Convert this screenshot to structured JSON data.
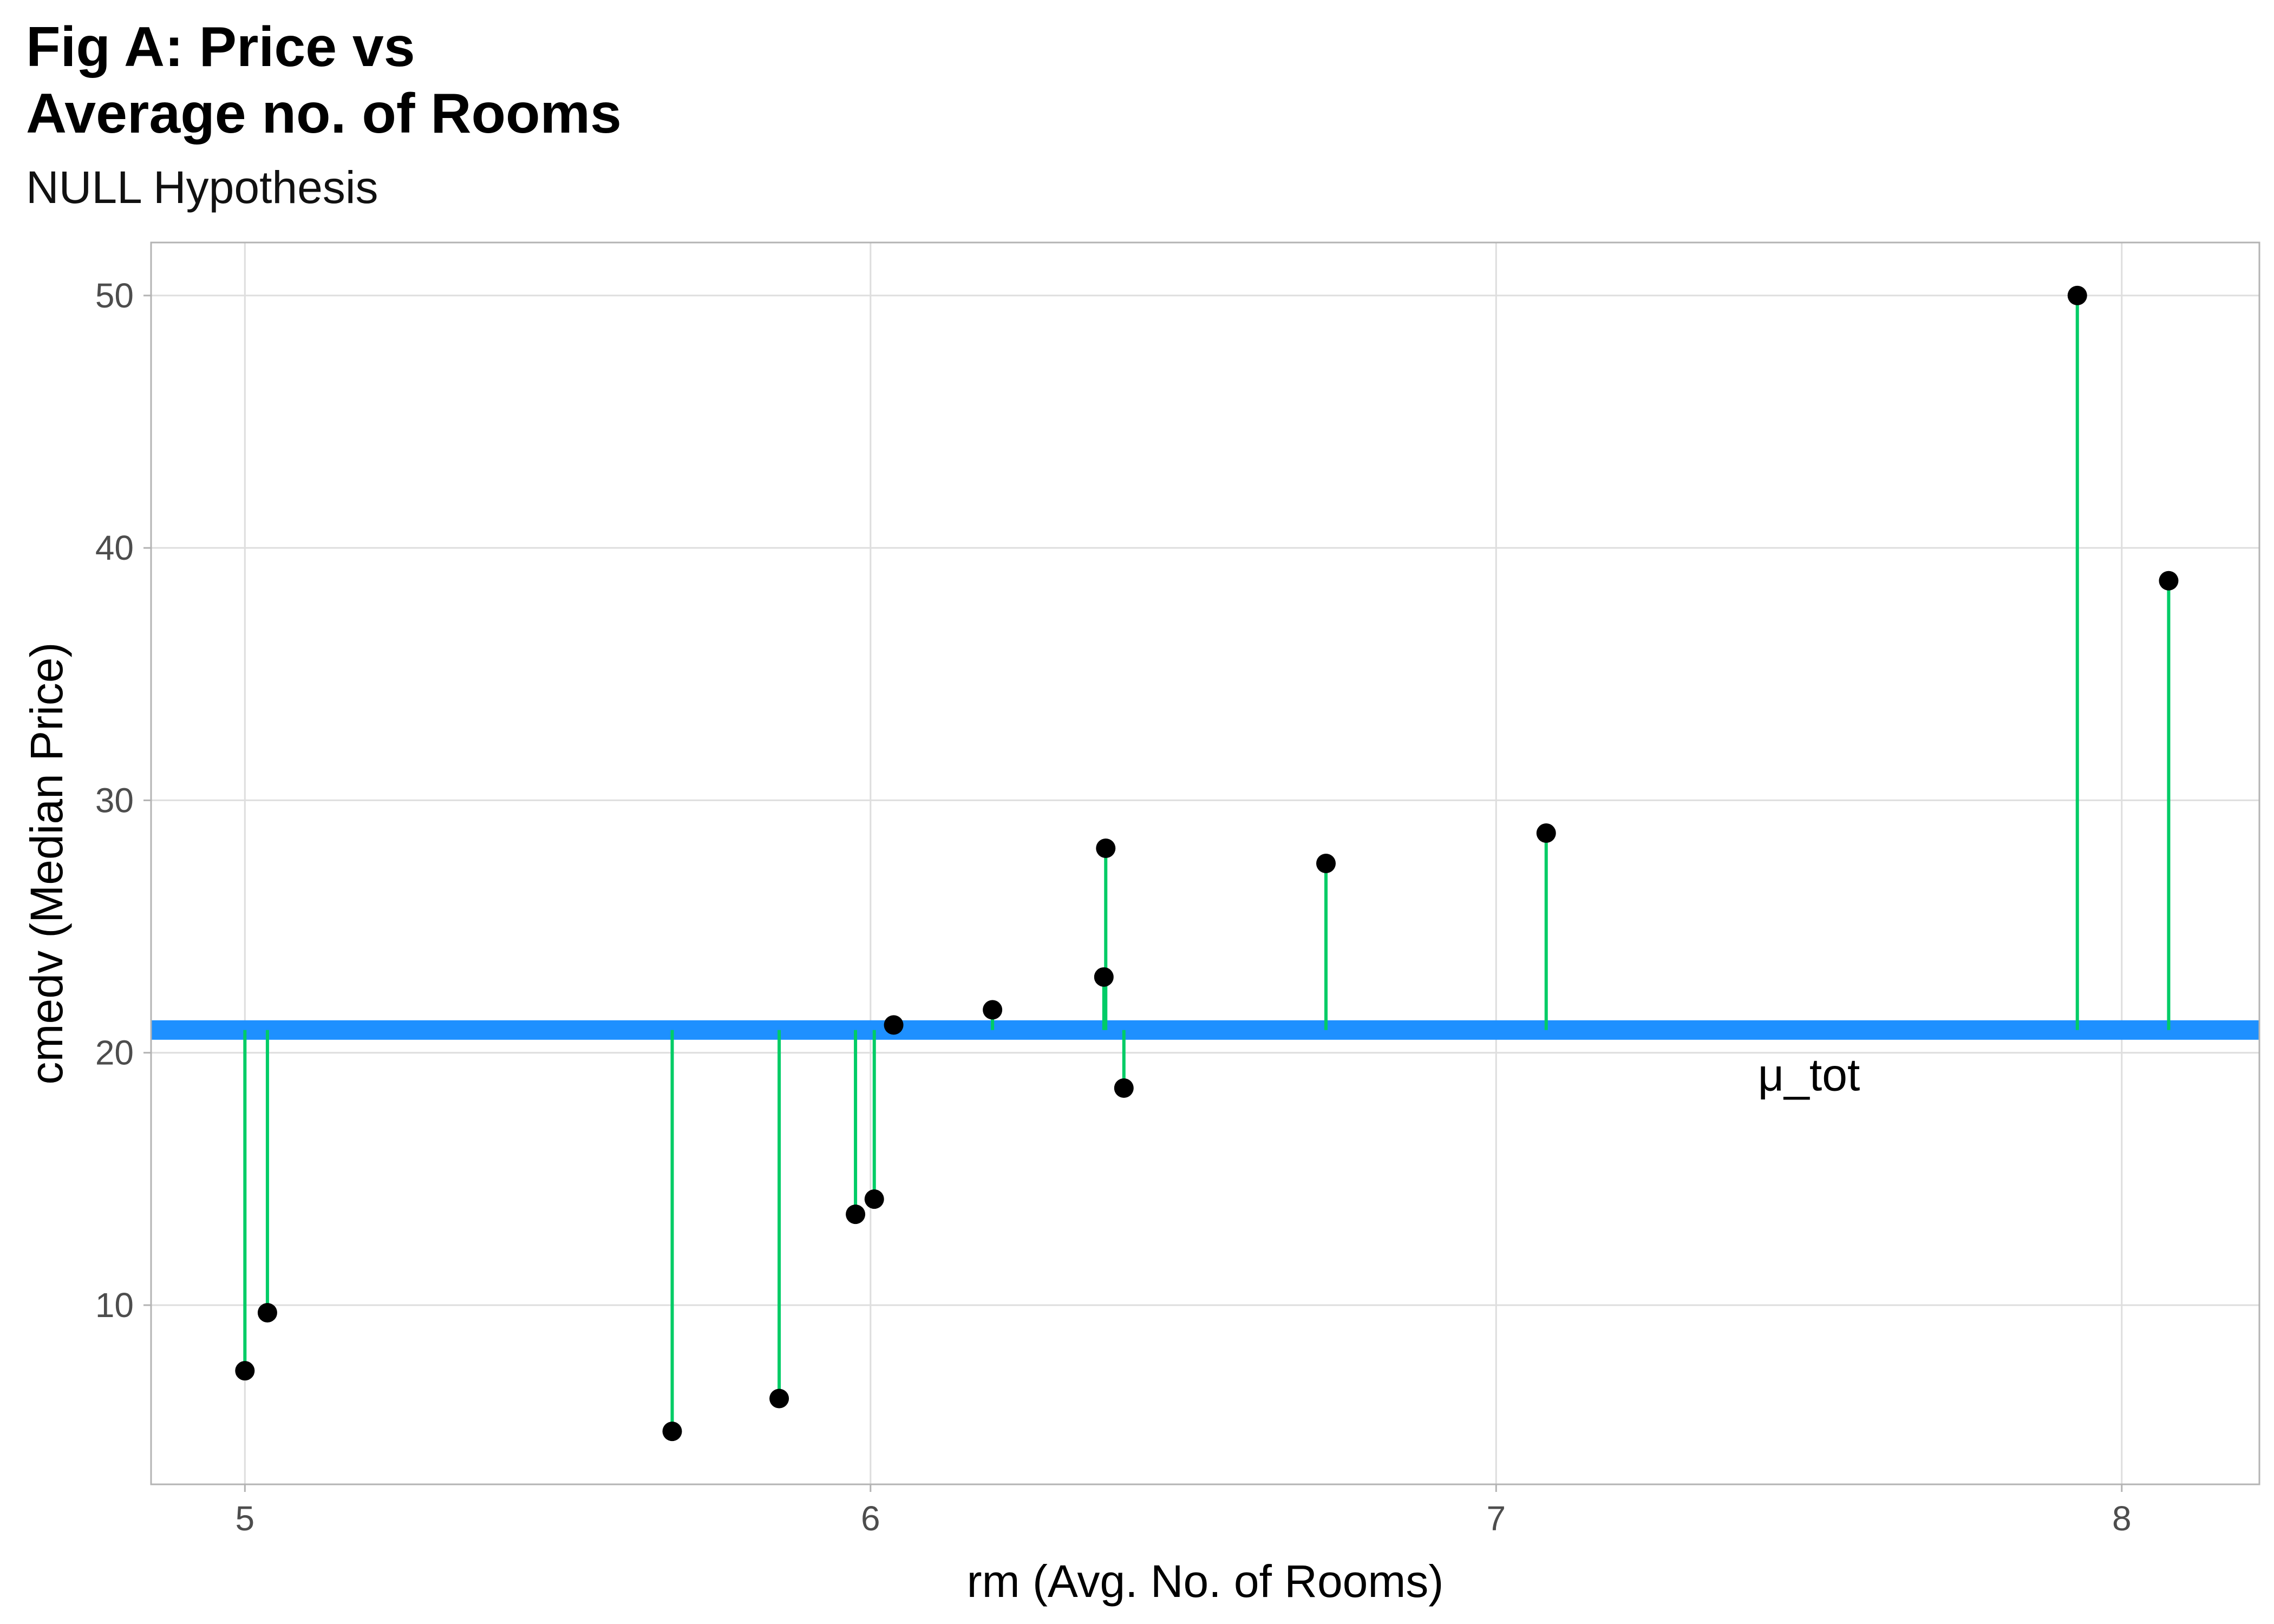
{
  "chart_data": {
    "type": "scatter",
    "title_line1": "Fig A: Price vs",
    "title_line2": "Average no. of Rooms",
    "subtitle": "NULL Hypothesis",
    "xlabel": "rm (Avg. No. of Rooms)",
    "ylabel": "cmedv (Median Price)",
    "xlim": [
      4.85,
      8.22
    ],
    "ylim": [
      2.9,
      52.1
    ],
    "x_ticks": [
      5,
      6,
      7,
      8
    ],
    "y_ticks": [
      10,
      20,
      30,
      40,
      50
    ],
    "grid": true,
    "mean_line": {
      "value": 20.9,
      "label": "μ_tot",
      "label_x": 7.5,
      "label_y": 19.1
    },
    "points": [
      {
        "x": 5.0,
        "y": 7.4
      },
      {
        "x": 5.036,
        "y": 9.7
      },
      {
        "x": 5.683,
        "y": 5.0
      },
      {
        "x": 5.854,
        "y": 6.3
      },
      {
        "x": 5.976,
        "y": 13.6
      },
      {
        "x": 6.006,
        "y": 14.2
      },
      {
        "x": 6.037,
        "y": 21.1
      },
      {
        "x": 6.195,
        "y": 21.7
      },
      {
        "x": 6.373,
        "y": 23.0
      },
      {
        "x": 6.376,
        "y": 28.1
      },
      {
        "x": 6.405,
        "y": 18.6
      },
      {
        "x": 6.728,
        "y": 27.5
      },
      {
        "x": 7.08,
        "y": 28.7
      },
      {
        "x": 7.929,
        "y": 50.0
      },
      {
        "x": 8.075,
        "y": 38.7
      }
    ],
    "colors": {
      "points": "#000000",
      "residuals": "#00cc66",
      "mean_line": "#1e90ff",
      "grid": "#dedede",
      "frame": "#b3b3b3"
    }
  }
}
